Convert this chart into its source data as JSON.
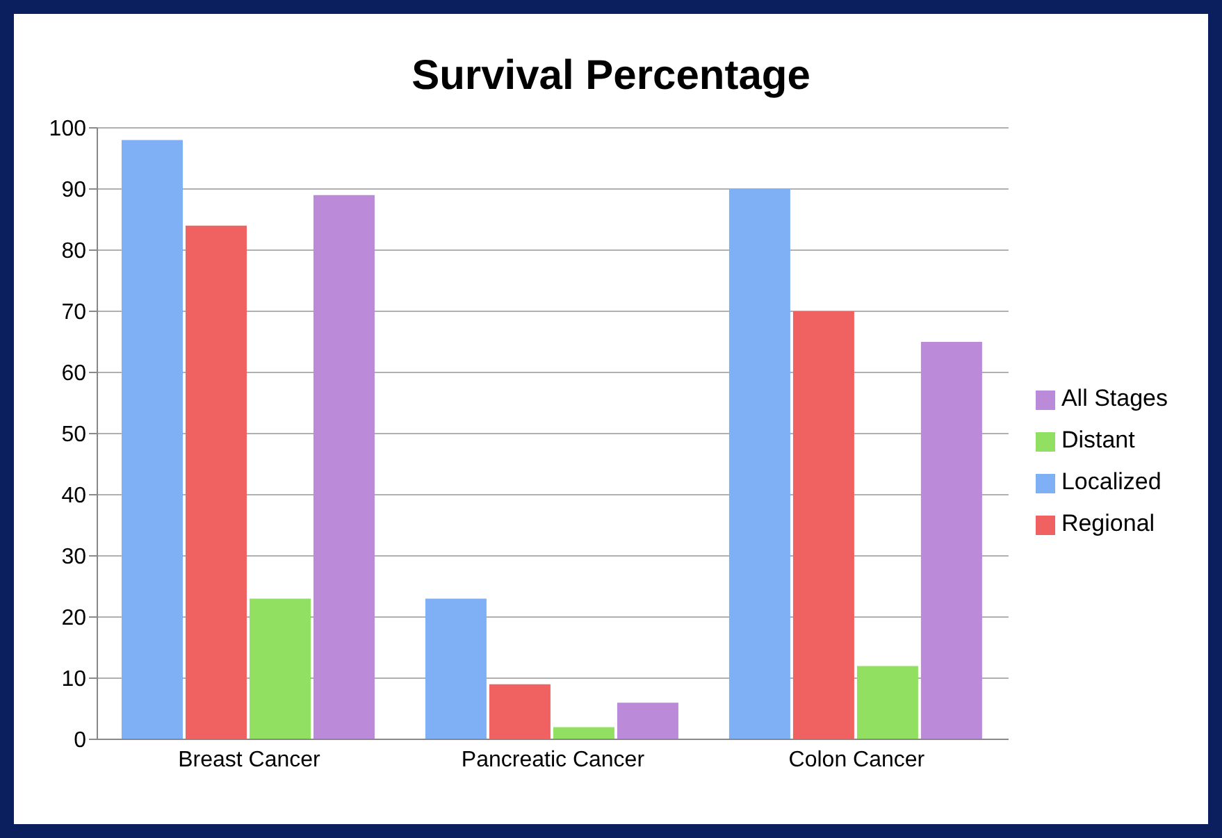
{
  "chart_data": {
    "type": "bar",
    "title": "Survival Percentage",
    "categories": [
      "Breast Cancer",
      "Pancreatic Cancer",
      "Colon Cancer"
    ],
    "series": [
      {
        "name": "Localized",
        "color": "#7fb0f5",
        "values": [
          98,
          23,
          90
        ]
      },
      {
        "name": "Regional",
        "color": "#f06262",
        "values": [
          84,
          9,
          70
        ]
      },
      {
        "name": "Distant",
        "color": "#92e062",
        "values": [
          23,
          2,
          12
        ]
      },
      {
        "name": "All Stages",
        "color": "#bb8ad8",
        "values": [
          89,
          6,
          65
        ]
      }
    ],
    "ylim": [
      0,
      100
    ],
    "yticks": [
      0,
      10,
      20,
      30,
      40,
      50,
      60,
      70,
      80,
      90,
      100
    ],
    "grid": "y",
    "legend": "right"
  }
}
